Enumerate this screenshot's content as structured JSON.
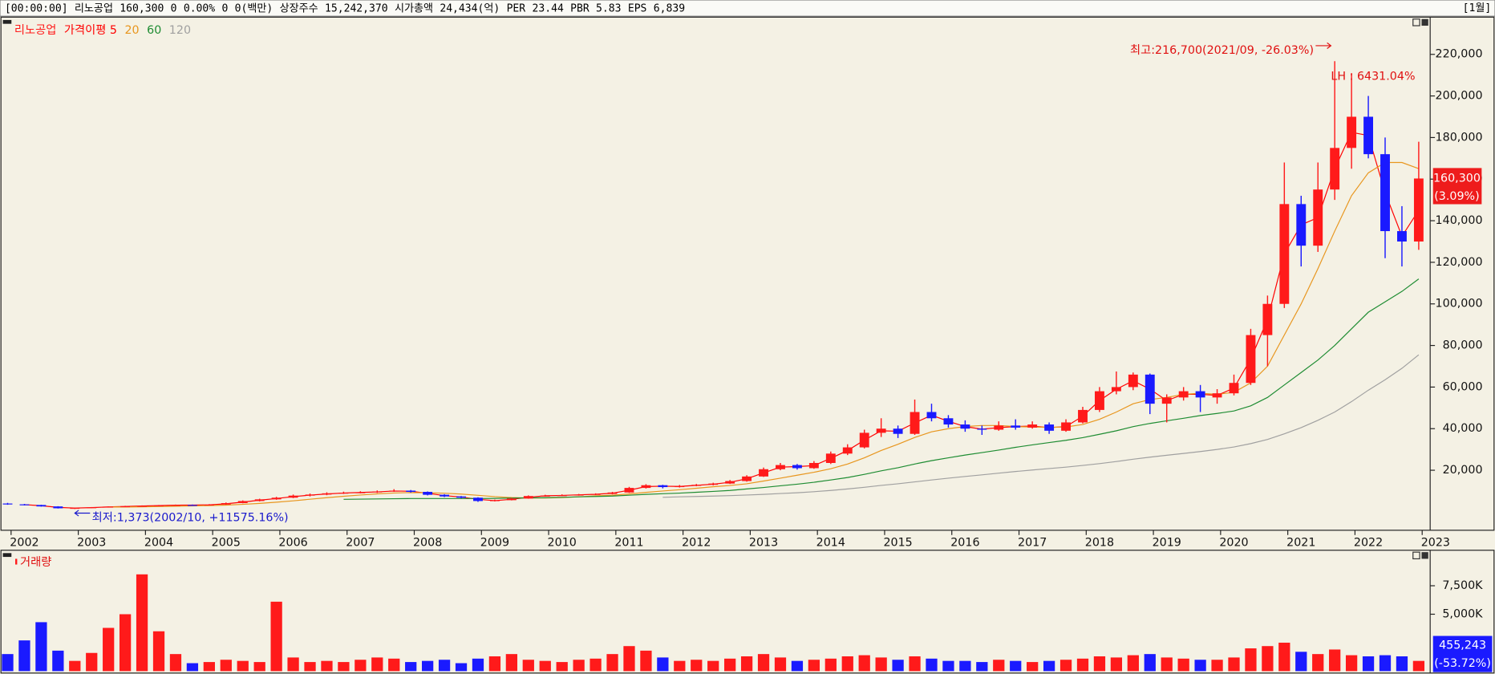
{
  "header": {
    "items": [
      "[00:00:00]",
      "리노공업",
      "160,300",
      "0",
      "0.00%",
      "0",
      "0(백만)",
      "상장주수",
      "15,242,370",
      "시가총액",
      "24,434(억)",
      "PER",
      "23.44",
      "PBR",
      "5.83",
      "EPS",
      "6,839"
    ],
    "period": "[1월]"
  },
  "chart_data": [
    {
      "type": "candlestick",
      "categories": [
        null,
        "2002",
        null,
        null,
        null,
        "2003",
        null,
        null,
        null,
        "2004",
        null,
        null,
        null,
        "2005",
        null,
        null,
        null,
        "2006",
        null,
        null,
        null,
        "2007",
        null,
        null,
        null,
        "2008",
        null,
        null,
        null,
        "2009",
        null,
        null,
        null,
        "2010",
        null,
        null,
        null,
        "2011",
        null,
        null,
        null,
        "2012",
        null,
        null,
        null,
        "2013",
        null,
        null,
        null,
        "2014",
        null,
        null,
        null,
        "2015",
        null,
        null,
        null,
        "2016",
        null,
        null,
        null,
        "2017",
        null,
        null,
        null,
        "2018",
        null,
        null,
        null,
        "2019",
        null,
        null,
        null,
        "2020",
        null,
        null,
        null,
        "2021",
        null,
        null,
        null,
        "2022",
        null,
        null,
        null,
        "2023"
      ],
      "candles": {
        "name": "리노공업",
        "open": [
          4000,
          3600,
          3300,
          2600,
          1700,
          1900,
          2200,
          2500,
          2700,
          2900,
          3100,
          3300,
          3200,
          3500,
          4200,
          5200,
          6000,
          6800,
          7800,
          8300,
          8900,
          9200,
          9400,
          9800,
          10200,
          9600,
          8200,
          7400,
          6800,
          5200,
          5600,
          6400,
          7600,
          7800,
          8000,
          8300,
          8600,
          9300,
          11500,
          12800,
          11900,
          12500,
          13000,
          13600,
          14800,
          17000,
          20500,
          22500,
          21000,
          23500,
          28000,
          31000,
          38000,
          40000,
          37500,
          48000,
          45000,
          42000,
          40000,
          39500,
          41500,
          40500,
          42000,
          39000,
          43000,
          49000,
          58000,
          60000,
          66000,
          52000,
          55000,
          58000,
          55000,
          57000,
          62000,
          85000,
          100000,
          148000,
          128000,
          155000,
          175000,
          190000,
          172000,
          135000,
          130000,
          null
        ],
        "high": [
          4300,
          3800,
          3400,
          2700,
          2000,
          2300,
          2600,
          2900,
          3100,
          3300,
          3500,
          3500,
          3700,
          4500,
          5500,
          6300,
          7200,
          8300,
          8800,
          9400,
          9700,
          9900,
          10300,
          10900,
          10500,
          9800,
          8500,
          7600,
          7000,
          5900,
          6700,
          7900,
          8200,
          8400,
          8600,
          8900,
          9600,
          12000,
          13300,
          13000,
          12900,
          13400,
          14000,
          15300,
          17600,
          21300,
          23500,
          23000,
          24400,
          29000,
          32500,
          39500,
          45000,
          41500,
          54000,
          52000,
          46500,
          44000,
          41500,
          43500,
          44500,
          43500,
          43000,
          44500,
          50500,
          60000,
          67500,
          67000,
          66500,
          56500,
          60000,
          61000,
          59000,
          66000,
          88000,
          104000,
          168000,
          152000,
          168000,
          216700,
          211000,
          200000,
          180000,
          147000,
          178000,
          null
        ],
        "low": [
          3400,
          3100,
          2500,
          1600,
          1373,
          1800,
          2100,
          2400,
          2600,
          2800,
          3000,
          3000,
          3100,
          3400,
          4100,
          5000,
          5800,
          6600,
          7400,
          8000,
          8600,
          8900,
          9100,
          9600,
          9300,
          7900,
          7100,
          6500,
          4800,
          5000,
          5500,
          6300,
          7300,
          7600,
          7800,
          8100,
          8400,
          9100,
          11200,
          11300,
          11700,
          12300,
          12700,
          13400,
          14500,
          16800,
          20000,
          20300,
          20700,
          23000,
          27300,
          30500,
          36000,
          35500,
          37000,
          43500,
          40500,
          38500,
          37000,
          39000,
          39500,
          40000,
          37500,
          38500,
          42500,
          48000,
          56500,
          58500,
          47000,
          43000,
          53500,
          48000,
          52000,
          56000,
          61000,
          70000,
          98000,
          118000,
          125000,
          150000,
          165000,
          170000,
          122000,
          118000,
          126000,
          null
        ],
        "close": [
          3600,
          3300,
          2600,
          1700,
          1900,
          2200,
          2500,
          2700,
          2900,
          3100,
          3300,
          3200,
          3500,
          4200,
          5200,
          6000,
          6800,
          7800,
          8300,
          8900,
          9200,
          9400,
          9800,
          10200,
          9600,
          8200,
          7400,
          6800,
          5200,
          5600,
          6400,
          7600,
          7800,
          8000,
          8300,
          8600,
          9300,
          11500,
          12800,
          11900,
          12500,
          13000,
          13600,
          14800,
          17000,
          20500,
          22500,
          21000,
          23500,
          28000,
          31000,
          38000,
          40000,
          37500,
          48000,
          45000,
          42000,
          40000,
          39500,
          41500,
          40500,
          42000,
          39000,
          43000,
          49000,
          58000,
          60000,
          66000,
          52000,
          55000,
          58000,
          55000,
          57000,
          62000,
          85000,
          100000,
          148000,
          128000,
          155000,
          175000,
          190000,
          172000,
          135000,
          130000,
          160300,
          null
        ]
      },
      "series": [
        {
          "name": "가격이평 5",
          "color": "#ff0000",
          "values": [
            null,
            3450,
            2950,
            2150,
            1800,
            2050,
            2350,
            2600,
            2800,
            3000,
            3200,
            3250,
            3350,
            3850,
            4700,
            5600,
            6400,
            7300,
            8050,
            8600,
            9050,
            9300,
            9600,
            10000,
            9900,
            8900,
            7800,
            7100,
            6000,
            5400,
            6000,
            7000,
            7700,
            7900,
            8150,
            8450,
            8950,
            10400,
            12150,
            12350,
            12200,
            12750,
            13300,
            14200,
            15900,
            18750,
            21500,
            21750,
            22250,
            25750,
            29500,
            34500,
            39000,
            38750,
            42750,
            46500,
            43500,
            41000,
            39750,
            40500,
            41000,
            41250,
            40500,
            41000,
            46000,
            53500,
            59000,
            63000,
            59000,
            53500,
            56500,
            56500,
            56000,
            59500,
            73500,
            92500,
            124000,
            138000,
            141500,
            165000,
            182500,
            181000,
            153500,
            132500,
            145000,
            null
          ]
        },
        {
          "name": "20",
          "color": "#e8961e",
          "values": [
            null,
            null,
            null,
            null,
            null,
            null,
            2300,
            2300,
            2400,
            2550,
            2700,
            2850,
            3000,
            3250,
            3600,
            4050,
            4650,
            5300,
            6050,
            6800,
            7500,
            8100,
            8650,
            9050,
            9250,
            9200,
            8950,
            8550,
            7950,
            7300,
            6850,
            6650,
            6650,
            6850,
            7200,
            7650,
            8000,
            8600,
            9350,
            10000,
            10650,
            11350,
            12050,
            12650,
            13500,
            14800,
            16200,
            17600,
            19000,
            20700,
            23000,
            26000,
            29500,
            32500,
            35800,
            38500,
            40000,
            41000,
            41500,
            41500,
            41000,
            40800,
            40600,
            40800,
            42000,
            44500,
            48000,
            52000,
            54000,
            55000,
            56500,
            57000,
            56500,
            57500,
            62000,
            70000,
            85000,
            100000,
            117000,
            135000,
            152000,
            163000,
            168000,
            168000,
            165000,
            null
          ]
        },
        {
          "name": "60",
          "color": "#1e8c32",
          "values": [
            null,
            null,
            null,
            null,
            null,
            null,
            null,
            null,
            null,
            null,
            null,
            null,
            null,
            null,
            null,
            null,
            null,
            null,
            null,
            null,
            6000,
            6100,
            6200,
            6300,
            6400,
            6400,
            6400,
            6400,
            6400,
            6500,
            6600,
            6700,
            6800,
            7000,
            7200,
            7400,
            7600,
            8000,
            8400,
            8700,
            9000,
            9400,
            9800,
            10300,
            11000,
            11700,
            12500,
            13300,
            14200,
            15300,
            16500,
            18000,
            19700,
            21200,
            23000,
            24600,
            26000,
            27300,
            28500,
            29700,
            31000,
            32200,
            33300,
            34400,
            35700,
            37300,
            39000,
            41000,
            42500,
            43800,
            45000,
            46300,
            47300,
            48500,
            51000,
            55000,
            61000,
            67000,
            73000,
            80000,
            88000,
            96000,
            101000,
            106000,
            112000,
            null
          ]
        },
        {
          "name": "120",
          "color": "#a0a0a0",
          "values": [
            null,
            null,
            null,
            null,
            null,
            null,
            null,
            null,
            null,
            null,
            null,
            null,
            null,
            null,
            null,
            null,
            null,
            null,
            null,
            null,
            null,
            null,
            null,
            null,
            null,
            null,
            null,
            null,
            null,
            null,
            null,
            null,
            null,
            null,
            null,
            null,
            null,
            null,
            null,
            7000,
            7200,
            7400,
            7600,
            7800,
            8100,
            8400,
            8800,
            9200,
            9700,
            10300,
            11000,
            11800,
            12700,
            13500,
            14400,
            15300,
            16200,
            17000,
            17800,
            18600,
            19400,
            20100,
            20800,
            21500,
            22300,
            23200,
            24200,
            25300,
            26300,
            27200,
            28100,
            29000,
            30000,
            31200,
            32800,
            34800,
            37500,
            40500,
            44000,
            48000,
            53000,
            58500,
            63500,
            69000,
            75500,
            null
          ]
        }
      ],
      "up_color": "#ff1a1a",
      "down_color": "#1a1aff",
      "ylim": [
        -8400,
        237900
      ],
      "yticks": [
        {
          "value": 20000,
          "label": "20,000"
        },
        {
          "value": 40000,
          "label": "40,000"
        },
        {
          "value": 60000,
          "label": "60,000"
        },
        {
          "value": 80000,
          "label": "80,000"
        },
        {
          "value": 100000,
          "label": "100,000"
        },
        {
          "value": 120000,
          "label": "120,000"
        },
        {
          "value": 140000,
          "label": "140,000"
        },
        {
          "value": 160000,
          "label": "160,000"
        },
        {
          "value": 180000,
          "label": "180,000"
        },
        {
          "value": 200000,
          "label": "200,000"
        },
        {
          "value": 220000,
          "label": "220,000"
        }
      ],
      "annotations": {
        "high": "최고:216,700(2021/09, -26.03%)",
        "lh": "LH : 6431.04%",
        "low": "최저:1,373(2002/10, +11575.16%)"
      },
      "last_label": [
        "160,300",
        "(3.09%)"
      ]
    },
    {
      "type": "bar",
      "name": "거래량",
      "values": [
        1500,
        2700,
        4300,
        1800,
        900,
        1600,
        3800,
        5000,
        8500,
        3500,
        1500,
        700,
        800,
        1000,
        900,
        800,
        6100,
        1200,
        800,
        900,
        800,
        1000,
        1200,
        1100,
        800,
        900,
        1000,
        700,
        1100,
        1300,
        1500,
        1000,
        900,
        800,
        1000,
        1100,
        1500,
        2200,
        1800,
        1200,
        900,
        1000,
        900,
        1100,
        1300,
        1500,
        1200,
        900,
        1000,
        1100,
        1300,
        1400,
        1200,
        1000,
        1300,
        1100,
        900,
        900,
        800,
        1000,
        900,
        800,
        900,
        1000,
        1100,
        1300,
        1200,
        1400,
        1500,
        1200,
        1100,
        1000,
        1000,
        1200,
        2000,
        2200,
        2500,
        1700,
        1500,
        1900,
        1400,
        1300,
        1400,
        1300,
        900,
        null
      ],
      "ylim": [
        0,
        10200
      ],
      "yticks": [
        {
          "value": 5000,
          "label": "5,000K"
        },
        {
          "value": 7500,
          "label": "7,500K"
        }
      ],
      "last_label": [
        "455,243",
        "(-53.72%)"
      ]
    }
  ]
}
